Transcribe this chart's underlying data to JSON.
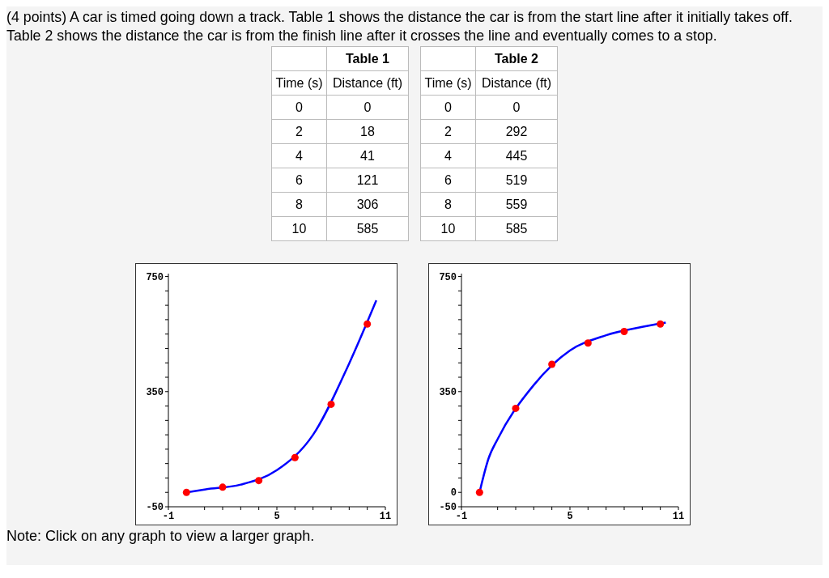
{
  "chart_data": [
    {
      "type": "heatmap",
      "title": "Table 1",
      "ylabel": "Time (s)",
      "categories": [
        "Distance (ft)"
      ],
      "y_categories": [
        "0",
        "2",
        "4",
        "6",
        "8",
        "10"
      ],
      "annotations": [
        "(4 points) A car is timed going down a track. Table 1 shows the distance the car is from the start line after it initially takes off. Table 2 shows the distance the car is from the finish line after it crosses the line and eventually comes to a stop."
      ],
      "cells": [
        [
          0
        ],
        [
          18
        ],
        [
          41
        ],
        [
          121
        ],
        [
          306
        ],
        [
          585
        ]
      ],
      "data_labels": true
    },
    {
      "type": "heatmap",
      "title": "Table 2",
      "ylabel": "Time (s)",
      "categories": [
        "Distance (ft)"
      ],
      "y_categories": [
        "0",
        "2",
        "4",
        "6",
        "8",
        "10"
      ],
      "cells": [
        [
          0
        ],
        [
          292
        ],
        [
          445
        ],
        [
          519
        ],
        [
          559
        ],
        [
          585
        ]
      ],
      "data_labels": true
    },
    {
      "type": "scatter",
      "marker": "circle",
      "x": [
        0,
        2,
        4,
        6,
        8,
        10
      ],
      "series": [
        {
          "color": "#ff0000",
          "values": [
            0,
            18,
            41,
            121,
            306,
            585
          ]
        },
        {
          "type": "line",
          "color": "#0000ff",
          "marker": "none",
          "x": [
            0,
            1,
            3,
            5,
            7,
            9,
            10.5
          ],
          "values": [
            0,
            10,
            27,
            77,
            200,
            448,
            667
          ]
        }
      ],
      "xlim": [
        -1,
        11
      ],
      "ylim": [
        -50,
        760
      ],
      "xticks": [
        -1,
        {
          "value": 1,
          "label": null
        },
        {
          "value": 2,
          "label": null
        },
        {
          "value": 3,
          "label": null
        },
        {
          "value": 4,
          "label": null
        },
        5,
        {
          "value": 6,
          "label": null
        },
        {
          "value": 7,
          "label": null
        },
        {
          "value": 8,
          "label": null
        },
        {
          "value": 9,
          "label": null
        },
        {
          "value": 10,
          "label": null
        },
        11
      ],
      "yticks": [
        -50,
        {
          "value": 0,
          "label": null
        },
        {
          "value": 50,
          "label": null
        },
        {
          "value": 100,
          "label": null
        },
        {
          "value": 150,
          "label": null
        },
        {
          "value": 200,
          "label": null
        },
        {
          "value": 250,
          "label": null
        },
        {
          "value": 300,
          "label": null
        },
        350,
        {
          "value": 400,
          "label": null
        },
        {
          "value": 450,
          "label": null
        },
        {
          "value": 500,
          "label": null
        },
        {
          "value": 550,
          "label": null
        },
        {
          "value": 600,
          "label": null
        },
        {
          "value": 650,
          "label": null
        },
        {
          "value": 700,
          "label": null
        },
        750
      ]
    },
    {
      "type": "scatter",
      "marker": "circle",
      "annotations": [
        "Note: Click on any graph to view a larger graph."
      ],
      "x": [
        0,
        2,
        4,
        6,
        8,
        10
      ],
      "series": [
        {
          "color": "#ff0000",
          "values": [
            0,
            292,
            445,
            519,
            559,
            585
          ]
        },
        {
          "type": "line",
          "color": "#0000ff",
          "marker": "none",
          "x": [
            0,
            0.5,
            1,
            3,
            5,
            7,
            9,
            10.3
          ],
          "values": [
            0,
            118,
            185,
            373,
            493,
            546,
            575,
            590
          ]
        }
      ],
      "xlim": [
        -1,
        11
      ],
      "ylim": [
        -50,
        760
      ],
      "xticks": [
        -1,
        {
          "value": 1,
          "label": null
        },
        {
          "value": 2,
          "label": null
        },
        {
          "value": 3,
          "label": null
        },
        {
          "value": 4,
          "label": null
        },
        5,
        {
          "value": 6,
          "label": null
        },
        {
          "value": 7,
          "label": null
        },
        {
          "value": 8,
          "label": null
        },
        {
          "value": 9,
          "label": null
        },
        {
          "value": 10,
          "label": null
        },
        11
      ],
      "yticks": [
        -50,
        0,
        {
          "value": 50,
          "label": null
        },
        {
          "value": 100,
          "label": null
        },
        {
          "value": 150,
          "label": null
        },
        {
          "value": 200,
          "label": null
        },
        {
          "value": 250,
          "label": null
        },
        {
          "value": 300,
          "label": null
        },
        350,
        {
          "value": 400,
          "label": null
        },
        {
          "value": 450,
          "label": null
        },
        {
          "value": 500,
          "label": null
        },
        {
          "value": 550,
          "label": null
        },
        {
          "value": 600,
          "label": null
        },
        {
          "value": 650,
          "label": null
        },
        {
          "value": 700,
          "label": null
        },
        750
      ]
    }
  ]
}
